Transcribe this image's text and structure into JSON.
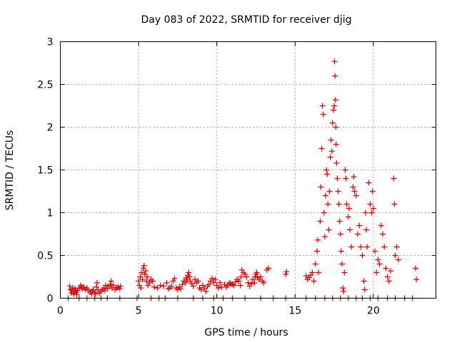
{
  "chart_data": {
    "type": "scatter",
    "title": "Day 083 of 2022, SRMTID for receiver djig",
    "xlabel": "GPS time / hours",
    "ylabel": "SRMTID / TECUs",
    "xlim": [
      0,
      24
    ],
    "ylim": [
      0,
      3
    ],
    "x_ticks": [
      0,
      5,
      10,
      15,
      20
    ],
    "x_tick_labels": [
      "0",
      "5",
      "10",
      "15",
      "20"
    ],
    "y_ticks": [
      0,
      0.5,
      1,
      1.5,
      2,
      2.5,
      3
    ],
    "y_tick_labels": [
      "0",
      "0.5",
      "1",
      "1.5",
      "2",
      "2.5",
      "3"
    ],
    "grid": true,
    "marker": "+",
    "color": "#e00000",
    "series": [
      {
        "name": "SRMTID",
        "points": [
          [
            0.6,
            0.14
          ],
          [
            0.65,
            0.1
          ],
          [
            0.7,
            0.06
          ],
          [
            0.75,
            0.09
          ],
          [
            0.8,
            0.12
          ],
          [
            0.85,
            0.05
          ],
          [
            0.9,
            0.08
          ],
          [
            0.95,
            0.11
          ],
          [
            1.0,
            0.07
          ],
          [
            1.05,
            0.04
          ],
          [
            1.1,
            0.09
          ],
          [
            1.2,
            0.12
          ],
          [
            1.3,
            0.15
          ],
          [
            1.35,
            0.13
          ],
          [
            1.4,
            0.11
          ],
          [
            1.5,
            0.13
          ],
          [
            1.6,
            0.1
          ],
          [
            1.7,
            0.12
          ],
          [
            1.8,
            0.09
          ],
          [
            1.9,
            0.07
          ],
          [
            2.0,
            0.05
          ],
          [
            2.05,
            0.08
          ],
          [
            2.1,
            0.1
          ],
          [
            2.2,
            0.07
          ],
          [
            2.25,
            0.05
          ],
          [
            2.3,
            0.13
          ],
          [
            2.35,
            0.18
          ],
          [
            2.4,
            0.1
          ],
          [
            2.5,
            0.06
          ],
          [
            2.6,
            0.08
          ],
          [
            2.7,
            0.1
          ],
          [
            2.8,
            0.12
          ],
          [
            2.85,
            0.09
          ],
          [
            2.9,
            0.15
          ],
          [
            3.0,
            0.11
          ],
          [
            3.1,
            0.14
          ],
          [
            3.2,
            0.16
          ],
          [
            3.25,
            0.2
          ],
          [
            3.3,
            0.12
          ],
          [
            3.4,
            0.15
          ],
          [
            3.5,
            0.1
          ],
          [
            3.6,
            0.12
          ],
          [
            3.7,
            0.13
          ],
          [
            3.8,
            0.11
          ],
          [
            3.85,
            0.14
          ],
          [
            5.0,
            0.2
          ],
          [
            5.05,
            0.15
          ],
          [
            5.1,
            0.25
          ],
          [
            5.15,
            0.12
          ],
          [
            5.2,
            0.3
          ],
          [
            5.25,
            0.22
          ],
          [
            5.3,
            0.35
          ],
          [
            5.35,
            0.38
          ],
          [
            5.4,
            0.28
          ],
          [
            5.45,
            0.32
          ],
          [
            5.5,
            0.2
          ],
          [
            5.55,
            0.25
          ],
          [
            5.6,
            0.15
          ],
          [
            5.7,
            0.18
          ],
          [
            5.8,
            0.22
          ],
          [
            5.9,
            0.2
          ],
          [
            6.0,
            0.13
          ],
          [
            6.2,
            0.12
          ],
          [
            6.4,
            0.15
          ],
          [
            6.6,
            0.14
          ],
          [
            6.8,
            0.18
          ],
          [
            6.9,
            0.11
          ],
          [
            7.0,
            0.12
          ],
          [
            7.1,
            0.14
          ],
          [
            7.2,
            0.2
          ],
          [
            7.3,
            0.23
          ],
          [
            7.4,
            0.12
          ],
          [
            7.5,
            0.1
          ],
          [
            7.6,
            0.13
          ],
          [
            7.7,
            0.11
          ],
          [
            7.8,
            0.16
          ],
          [
            7.9,
            0.2
          ],
          [
            8.0,
            0.18
          ],
          [
            8.05,
            0.24
          ],
          [
            8.1,
            0.22
          ],
          [
            8.15,
            0.27
          ],
          [
            8.2,
            0.3
          ],
          [
            8.25,
            0.25
          ],
          [
            8.3,
            0.2
          ],
          [
            8.4,
            0.17
          ],
          [
            8.5,
            0.14
          ],
          [
            8.6,
            0.22
          ],
          [
            8.7,
            0.18
          ],
          [
            8.8,
            0.2
          ],
          [
            8.9,
            0.12
          ],
          [
            9.0,
            0.1
          ],
          [
            9.1,
            0.15
          ],
          [
            9.2,
            0.12
          ],
          [
            9.3,
            0.08
          ],
          [
            9.4,
            0.14
          ],
          [
            9.5,
            0.16
          ],
          [
            9.6,
            0.2
          ],
          [
            9.7,
            0.23
          ],
          [
            9.8,
            0.18
          ],
          [
            9.9,
            0.22
          ],
          [
            10.0,
            0.15
          ],
          [
            10.1,
            0.12
          ],
          [
            10.2,
            0.18
          ],
          [
            10.3,
            0.13
          ],
          [
            10.5,
            0.16
          ],
          [
            10.6,
            0.13
          ],
          [
            10.7,
            0.15
          ],
          [
            10.8,
            0.18
          ],
          [
            10.9,
            0.17
          ],
          [
            11.0,
            0.16
          ],
          [
            11.1,
            0.15
          ],
          [
            11.2,
            0.19
          ],
          [
            11.3,
            0.22
          ],
          [
            11.4,
            0.2
          ],
          [
            11.5,
            0.15
          ],
          [
            11.55,
            0.25
          ],
          [
            11.6,
            0.33
          ],
          [
            11.7,
            0.3
          ],
          [
            11.8,
            0.28
          ],
          [
            11.9,
            0.25
          ],
          [
            12.0,
            0.18
          ],
          [
            12.1,
            0.14
          ],
          [
            12.2,
            0.17
          ],
          [
            12.3,
            0.22
          ],
          [
            12.4,
            0.18
          ],
          [
            12.45,
            0.25
          ],
          [
            12.5,
            0.28
          ],
          [
            12.55,
            0.3
          ],
          [
            12.6,
            0.24
          ],
          [
            12.7,
            0.22
          ],
          [
            12.8,
            0.25
          ],
          [
            12.9,
            0.2
          ],
          [
            13.0,
            0.18
          ],
          [
            13.2,
            0.33
          ],
          [
            13.3,
            0.35
          ],
          [
            14.4,
            0.28
          ],
          [
            14.45,
            0.31
          ],
          [
            15.7,
            0.26
          ],
          [
            15.8,
            0.22
          ],
          [
            15.9,
            0.24
          ],
          [
            16.0,
            0.27
          ],
          [
            16.1,
            0.3
          ],
          [
            16.2,
            0.2
          ],
          [
            16.3,
            0.4
          ],
          [
            16.4,
            0.55
          ],
          [
            16.45,
            0.68
          ],
          [
            16.5,
            0.3
          ],
          [
            16.6,
            0.9
          ],
          [
            16.65,
            1.3
          ],
          [
            16.7,
            1.75
          ],
          [
            16.75,
            2.25
          ],
          [
            16.8,
            2.15
          ],
          [
            16.85,
            1.0
          ],
          [
            16.9,
            0.72
          ],
          [
            16.95,
            1.2
          ],
          [
            17.0,
            1.5
          ],
          [
            17.05,
            1.45
          ],
          [
            17.1,
            1.1
          ],
          [
            17.15,
            0.8
          ],
          [
            17.2,
            1.25
          ],
          [
            17.25,
            1.65
          ],
          [
            17.3,
            1.85
          ],
          [
            17.35,
            1.72
          ],
          [
            17.4,
            2.05
          ],
          [
            17.45,
            2.2
          ],
          [
            17.5,
            2.25
          ],
          [
            17.52,
            2.77
          ],
          [
            17.55,
            2.6
          ],
          [
            17.58,
            2.32
          ],
          [
            17.6,
            2.0
          ],
          [
            17.62,
            1.8
          ],
          [
            17.65,
            1.58
          ],
          [
            17.7,
            1.4
          ],
          [
            17.75,
            1.25
          ],
          [
            17.8,
            1.1
          ],
          [
            17.85,
            0.9
          ],
          [
            17.9,
            0.75
          ],
          [
            17.95,
            0.55
          ],
          [
            18.0,
            0.4
          ],
          [
            18.05,
            0.12
          ],
          [
            18.1,
            0.08
          ],
          [
            18.15,
            0.3
          ],
          [
            18.2,
            1.5
          ],
          [
            18.25,
            1.4
          ],
          [
            18.3,
            1.1
          ],
          [
            18.4,
            0.95
          ],
          [
            18.45,
            1.05
          ],
          [
            18.5,
            0.8
          ],
          [
            18.6,
            0.6
          ],
          [
            18.7,
            1.3
          ],
          [
            18.75,
            1.42
          ],
          [
            18.8,
            1.25
          ],
          [
            18.9,
            1.2
          ],
          [
            19.0,
            0.75
          ],
          [
            19.1,
            0.85
          ],
          [
            19.2,
            0.6
          ],
          [
            19.3,
            0.5
          ],
          [
            19.4,
            0.2
          ],
          [
            19.45,
            0.1
          ],
          [
            19.5,
            1.0
          ],
          [
            19.55,
            0.8
          ],
          [
            19.6,
            0.6
          ],
          [
            19.7,
            1.35
          ],
          [
            19.8,
            1.1
          ],
          [
            19.9,
            1.0
          ],
          [
            19.95,
            1.25
          ],
          [
            20.0,
            1.05
          ],
          [
            20.1,
            0.55
          ],
          [
            20.2,
            0.3
          ],
          [
            20.3,
            0.45
          ],
          [
            20.4,
            0.4
          ],
          [
            20.5,
            0.85
          ],
          [
            20.6,
            0.75
          ],
          [
            20.7,
            0.6
          ],
          [
            20.8,
            0.35
          ],
          [
            20.9,
            0.25
          ],
          [
            21.0,
            0.2
          ],
          [
            21.1,
            0.32
          ],
          [
            21.3,
            1.4
          ],
          [
            21.35,
            1.1
          ],
          [
            21.4,
            0.5
          ],
          [
            21.5,
            0.6
          ],
          [
            21.6,
            0.45
          ],
          [
            22.7,
            0.35
          ],
          [
            22.75,
            0.22
          ],
          [
            0.5,
            0.0
          ],
          [
            1.2,
            0.0
          ],
          [
            1.7,
            0.0
          ],
          [
            2.2,
            0.0
          ],
          [
            2.6,
            0.0
          ],
          [
            3.0,
            0.0
          ],
          [
            3.8,
            0.0
          ],
          [
            4.9,
            0.0
          ],
          [
            5.8,
            0.0
          ],
          [
            6.3,
            0.0
          ],
          [
            6.7,
            0.0
          ],
          [
            7.5,
            0.0
          ],
          [
            8.5,
            0.0
          ],
          [
            9.1,
            0.0
          ],
          [
            9.8,
            0.0
          ],
          [
            10.4,
            0.0
          ],
          [
            11.0,
            0.0
          ],
          [
            11.8,
            0.0
          ],
          [
            12.8,
            0.0
          ],
          [
            13.6,
            0.0
          ],
          [
            14.4,
            0.0
          ],
          [
            15.7,
            0.0
          ],
          [
            16.3,
            0.0
          ],
          [
            16.9,
            0.0
          ],
          [
            17.4,
            0.0
          ],
          [
            17.9,
            0.0
          ],
          [
            18.4,
            0.0
          ],
          [
            18.9,
            0.0
          ],
          [
            19.3,
            0.0
          ],
          [
            19.8,
            0.0
          ],
          [
            20.3,
            0.0
          ],
          [
            20.9,
            0.0
          ],
          [
            21.4,
            0.0
          ],
          [
            22.0,
            0.0
          ],
          [
            22.5,
            0.0
          ]
        ]
      }
    ]
  }
}
